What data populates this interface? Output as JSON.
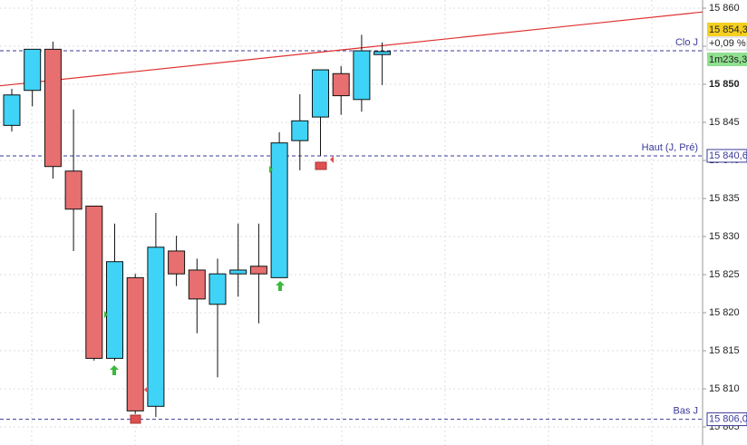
{
  "chart_data": {
    "type": "candlestick",
    "candles": [
      {
        "open": 15844.6,
        "high": 15849.4,
        "low": 15843.8,
        "close": 15848.6
      },
      {
        "open": 15849.2,
        "high": 15854.6,
        "low": 15847.1,
        "close": 15854.6
      },
      {
        "open": 15854.6,
        "high": 15855.6,
        "low": 15837.6,
        "close": 15839.2
      },
      {
        "open": 15838.6,
        "high": 15846.7,
        "low": 15828.1,
        "close": 15833.6
      },
      {
        "open": 15834.0,
        "high": 15834.0,
        "low": 15813.7,
        "close": 15814.0
      },
      {
        "open": 15814.0,
        "high": 15831.7,
        "low": 15813.7,
        "close": 15826.7
      },
      {
        "open": 15824.6,
        "high": 15825.1,
        "low": 15806.7,
        "close": 15807.1
      },
      {
        "open": 15807.7,
        "high": 15833.1,
        "low": 15806.3,
        "close": 15828.6
      },
      {
        "open": 15828.1,
        "high": 15830.1,
        "low": 15823.5,
        "close": 15825.1
      },
      {
        "open": 15825.6,
        "high": 15827.1,
        "low": 15817.3,
        "close": 15821.8
      },
      {
        "open": 15821.1,
        "high": 15827.1,
        "low": 15811.5,
        "close": 15825.1
      },
      {
        "open": 15825.1,
        "high": 15831.7,
        "low": 15822.1,
        "close": 15825.6
      },
      {
        "open": 15826.1,
        "high": 15831.7,
        "low": 15818.6,
        "close": 15825.1
      },
      {
        "open": 15824.6,
        "high": 15843.7,
        "low": 15824.6,
        "close": 15842.3
      },
      {
        "open": 15842.6,
        "high": 15848.7,
        "low": 15838.7,
        "close": 15845.2
      },
      {
        "open": 15845.7,
        "high": 15851.9,
        "low": 15840.6,
        "close": 15851.9
      },
      {
        "open": 15851.4,
        "high": 15852.4,
        "low": 15846.0,
        "close": 15848.5
      },
      {
        "open": 15848.0,
        "high": 15856.5,
        "low": 15846.4,
        "close": 15854.4
      },
      {
        "open": 15853.9,
        "high": 15855.5,
        "low": 15849.9,
        "close": 15854.3
      }
    ],
    "up_color": "#3fd3f7",
    "down_color": "#e86f6f",
    "ylim": [
      15804,
      15861
    ],
    "yticks": [
      {
        "value": 15805,
        "label": "15 805"
      },
      {
        "value": 15810,
        "label": "15 810"
      },
      {
        "value": 15815,
        "label": "15 815"
      },
      {
        "value": 15820,
        "label": "15 820"
      },
      {
        "value": 15825,
        "label": "15 825"
      },
      {
        "value": 15830,
        "label": "15 830"
      },
      {
        "value": 15835,
        "label": "15 835"
      },
      {
        "value": 15840,
        "label": "15 840"
      },
      {
        "value": 15845,
        "label": "15 845"
      },
      {
        "value": 15850,
        "label": "15 850"
      },
      {
        "value": 15855,
        "label": "15 855"
      },
      {
        "value": 15860,
        "label": "15 860"
      }
    ],
    "grid": true,
    "levels": [
      {
        "name": "Clo J",
        "value": 15854.4
      },
      {
        "name": "Haut (J, Pré)",
        "value": 15840.6,
        "label": "15 840,6"
      },
      {
        "name": "Bas J",
        "value": 15806.0,
        "label": "15 806,0"
      }
    ],
    "trendline": {
      "start": 15849.8,
      "end": 15859.5,
      "color": "#e03030"
    },
    "price_tags": {
      "last": "15 854,3",
      "change": "+0,09 %",
      "timer": "1m23s,3"
    }
  }
}
